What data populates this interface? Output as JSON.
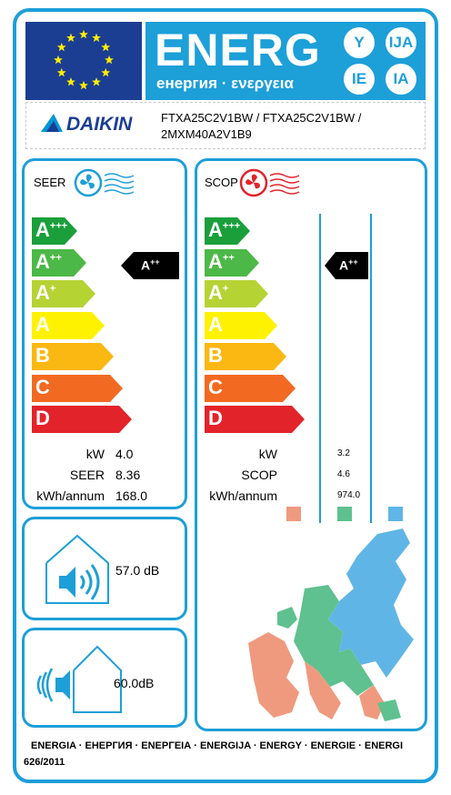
{
  "header": {
    "title": "ENERG",
    "subtitle": "енергия · ενεργεια",
    "circles": [
      "Y",
      "IJA",
      "IE",
      "IA"
    ]
  },
  "brand": {
    "name": "DAIKIN",
    "models": [
      "FTXA25C2V1BW / FTXA25C2V1BW /",
      "2MXM40A2V1B9"
    ]
  },
  "scale_classes": [
    {
      "letter": "A",
      "sup": "+++",
      "color": "#1a9f3b"
    },
    {
      "letter": "A",
      "sup": "++",
      "color": "#4cb847"
    },
    {
      "letter": "A",
      "sup": "+",
      "color": "#b6d334"
    },
    {
      "letter": "A",
      "sup": "",
      "color": "#fff200"
    },
    {
      "letter": "B",
      "sup": "",
      "color": "#fbb812"
    },
    {
      "letter": "C",
      "sup": "",
      "color": "#f26a21"
    },
    {
      "letter": "D",
      "sup": "",
      "color": "#e3232a"
    }
  ],
  "cooling": {
    "title": "SEER",
    "rating": {
      "letter": "A",
      "sup": "++"
    },
    "rows": [
      {
        "label": "kW",
        "value": "4.0"
      },
      {
        "label": "SEER",
        "value": "8.36"
      },
      {
        "label": "kWh/annum",
        "value": "168.0"
      }
    ]
  },
  "heating": {
    "title": "SCOP",
    "rating": {
      "letter": "A",
      "sup": "++"
    },
    "rows": [
      {
        "label": "kW",
        "value": "3.2"
      },
      {
        "label": "SCOP",
        "value": "4.6"
      },
      {
        "label": "kWh/annum",
        "value": "974.0"
      }
    ],
    "climate_colors": [
      "#ef9a7e",
      "#5fc18f",
      "#5fb6e6"
    ]
  },
  "noise": {
    "indoor": "57.0 dB",
    "outdoor": "60.0dB"
  },
  "footer": {
    "languages": "ENERGIA · ЕНЕРГИЯ · ΕΝΕΡΓΕΙΑ · ENERGIJA · ENERGY · ENERGIE · ENERGI",
    "regulation": "626/2011"
  }
}
